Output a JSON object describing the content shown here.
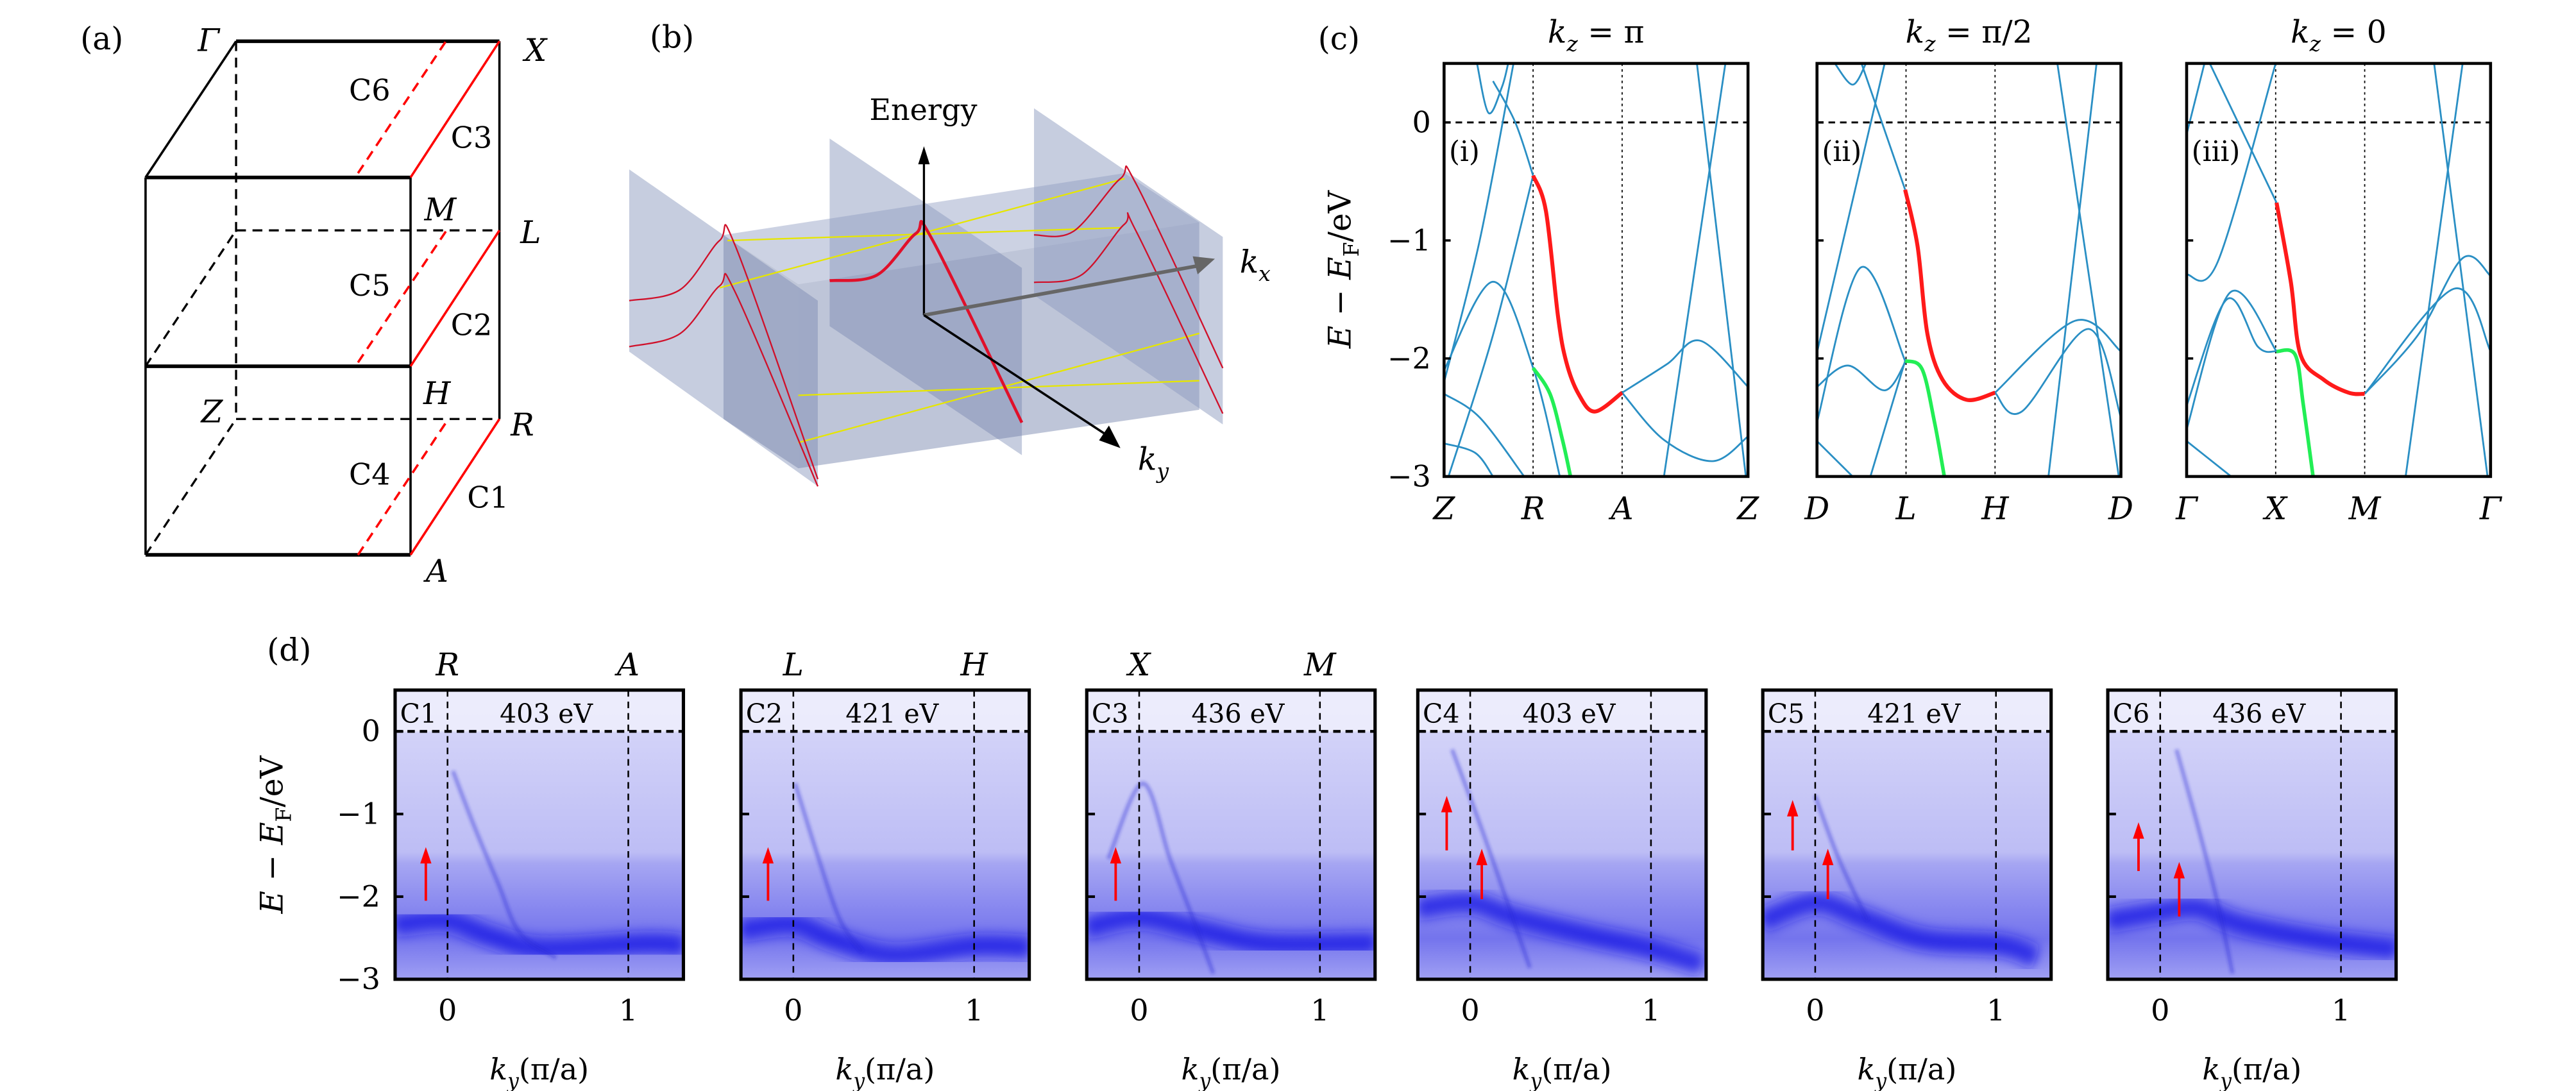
{
  "panel_a": {
    "tag": "(a)",
    "points": {
      "Gamma": "Γ",
      "X": "X",
      "M": "M",
      "L": "L",
      "H": "H",
      "Z": "Z",
      "R": "R",
      "A": "A"
    },
    "cuts": {
      "C1": "C1",
      "C2": "C2",
      "C3": "C3",
      "C4": "C4",
      "C5": "C5",
      "C6": "C6"
    },
    "cut_color": "#ff0000"
  },
  "panel_b": {
    "tag": "(b)",
    "energy_axis": "Energy",
    "kx_axis": {
      "main": "k",
      "sub": "x"
    },
    "ky_axis": {
      "main": "k",
      "sub": "y"
    },
    "plane_color": "#8e9cc0",
    "band_color": "#d0102a",
    "contour_color": "#e6e600"
  },
  "panel_c": {
    "tag": "(c)",
    "ylabel": {
      "main": "E − E",
      "sub": "F",
      "tail": "/eV"
    }
  },
  "panel_d": {
    "tag": "(d)",
    "ylabel": {
      "main": "E − E",
      "sub": "F",
      "tail": "/eV"
    }
  },
  "chart_data": [
    {
      "type": "line",
      "panel": "c",
      "title": {
        "main": "k",
        "sub": "z",
        "tail": " = π"
      },
      "panel_tag": "(i)",
      "ylabel": "E − E_F/eV",
      "ylim": [
        -3,
        0.5
      ],
      "yticks": [
        0,
        -1,
        -2,
        -3
      ],
      "ytick_labels": [
        "0",
        "−1",
        "−2",
        "−3"
      ],
      "xlim": [
        0,
        3.414
      ],
      "xticks": [
        {
          "value": 0,
          "label": "Z"
        },
        {
          "value": 1,
          "label": "R"
        },
        {
          "value": 2,
          "label": "A"
        },
        {
          "value": 3.414,
          "label": "Z"
        }
      ],
      "fermi_level": 0,
      "colors": {
        "bands": "#2a8fc4",
        "highlight_upper": "#ff1a1a",
        "highlight_lower": "#22ee55"
      },
      "highlight_upper": [
        [
          1.0,
          -0.45
        ],
        [
          1.144,
          -0.75
        ],
        [
          1.281,
          -1.65
        ],
        [
          1.373,
          -2.03
        ],
        [
          1.51,
          -2.3
        ],
        [
          1.693,
          -2.45
        ],
        [
          2.0,
          -2.29
        ]
      ],
      "highlight_lower": [
        [
          1.0,
          -2.08
        ],
        [
          1.19,
          -2.3
        ],
        [
          1.33,
          -2.69
        ],
        [
          1.42,
          -3.0
        ]
      ],
      "bands": [
        [
          [
            0.37,
            0.5
          ],
          [
            0.5,
            0.08
          ],
          [
            0.65,
            0.3
          ],
          [
            0.72,
            0.5
          ]
        ],
        [
          [
            0.78,
            0.5
          ],
          [
            0.4,
            -1.0
          ],
          [
            0.0,
            -2.2
          ]
        ],
        [
          [
            0.55,
            0.35
          ],
          [
            0.8,
            0.0
          ],
          [
            1.0,
            -0.45
          ]
        ],
        [
          [
            0,
            -2.1
          ],
          [
            0.55,
            -1.35
          ],
          [
            1.0,
            -2.08
          ],
          [
            1.3,
            -3.0
          ]
        ],
        [
          [
            0.05,
            -3.0
          ],
          [
            0.55,
            -1.8
          ],
          [
            1.0,
            -0.45
          ]
        ],
        [
          [
            0,
            -2.72
          ],
          [
            0.35,
            -2.8
          ],
          [
            0.55,
            -3.0
          ]
        ],
        [
          [
            0,
            -2.3
          ],
          [
            0.4,
            -2.5
          ],
          [
            0.9,
            -3.0
          ]
        ],
        [
          [
            2.0,
            -2.29
          ],
          [
            2.5,
            -2.05
          ],
          [
            2.88,
            -1.85
          ],
          [
            3.414,
            -2.24
          ]
        ],
        [
          [
            2.0,
            -2.29
          ],
          [
            2.47,
            -2.69
          ],
          [
            3.02,
            -2.87
          ],
          [
            3.414,
            -2.66
          ]
        ],
        [
          [
            3.16,
            0.5
          ],
          [
            2.47,
            -3.0
          ]
        ],
        [
          [
            2.84,
            0.5
          ],
          [
            3.39,
            -3.0
          ]
        ]
      ]
    },
    {
      "type": "line",
      "panel": "c",
      "title": {
        "main": "k",
        "sub": "z",
        "tail": " = π/2"
      },
      "panel_tag": "(ii)",
      "ylim": [
        -3,
        0.5
      ],
      "yticks": [
        0,
        -1,
        -2,
        -3
      ],
      "xlim": [
        0,
        3.414
      ],
      "xticks": [
        {
          "value": 0,
          "label": "D"
        },
        {
          "value": 1,
          "label": "L"
        },
        {
          "value": 2,
          "label": "H"
        },
        {
          "value": 3.414,
          "label": "D"
        }
      ],
      "fermi_level": 0,
      "colors": {
        "bands": "#2a8fc4",
        "highlight_upper": "#ff1a1a",
        "highlight_lower": "#22ee55"
      },
      "highlight_upper": [
        [
          0.99,
          -0.57
        ],
        [
          1.13,
          -1.05
        ],
        [
          1.24,
          -1.79
        ],
        [
          1.41,
          -2.18
        ],
        [
          1.68,
          -2.35
        ],
        [
          2.0,
          -2.29
        ]
      ],
      "highlight_lower": [
        [
          0.99,
          -2.02
        ],
        [
          1.18,
          -2.09
        ],
        [
          1.32,
          -2.54
        ],
        [
          1.43,
          -3.0
        ]
      ],
      "bands": [
        [
          [
            0,
            -1.95
          ],
          [
            0.76,
            0.5
          ]
        ],
        [
          [
            0.2,
            0.5
          ],
          [
            0.4,
            0.32
          ],
          [
            0.55,
            0.5
          ]
        ],
        [
          [
            0.5,
            0.5
          ],
          [
            0.99,
            -0.57
          ]
        ],
        [
          [
            0,
            -2.54
          ],
          [
            0.49,
            -1.23
          ],
          [
            0.99,
            -2.02
          ]
        ],
        [
          [
            0,
            -2.24
          ],
          [
            0.35,
            -2.06
          ],
          [
            0.76,
            -2.27
          ],
          [
            1.0,
            -2.02
          ]
        ],
        [
          [
            0,
            -2.7
          ],
          [
            0.4,
            -3.0
          ]
        ],
        [
          [
            0.6,
            -3.0
          ],
          [
            0.99,
            -2.02
          ]
        ],
        [
          [
            2.0,
            -2.29
          ],
          [
            2.9,
            -1.68
          ],
          [
            3.414,
            -1.94
          ]
        ],
        [
          [
            2.0,
            -2.29
          ],
          [
            2.3,
            -2.45
          ],
          [
            3.05,
            -1.75
          ],
          [
            3.414,
            -2.5
          ]
        ],
        [
          [
            3.14,
            0.5
          ],
          [
            2.6,
            -3.0
          ]
        ],
        [
          [
            2.7,
            0.5
          ],
          [
            3.39,
            -3.0
          ]
        ]
      ]
    },
    {
      "type": "line",
      "panel": "c",
      "title": {
        "main": "k",
        "sub": "z",
        "tail": " = 0"
      },
      "panel_tag": "(iii)",
      "ylim": [
        -3,
        0.5
      ],
      "yticks": [
        0,
        -1,
        -2,
        -3
      ],
      "xlim": [
        0,
        3.414
      ],
      "xticks": [
        {
          "value": 0,
          "label": "Γ"
        },
        {
          "value": 1,
          "label": "X"
        },
        {
          "value": 2,
          "label": "M"
        },
        {
          "value": 3.414,
          "label": "Γ"
        }
      ],
      "fermi_level": 0,
      "colors": {
        "bands": "#2a8fc4",
        "highlight_upper": "#ff1a1a",
        "highlight_lower": "#22ee55"
      },
      "highlight_upper": [
        [
          1.01,
          -0.68
        ],
        [
          1.17,
          -1.35
        ],
        [
          1.28,
          -1.97
        ],
        [
          1.54,
          -2.18
        ],
        [
          1.82,
          -2.29
        ],
        [
          2.0,
          -2.3
        ]
      ],
      "highlight_lower": [
        [
          1.01,
          -1.94
        ],
        [
          1.22,
          -1.97
        ],
        [
          1.31,
          -2.39
        ],
        [
          1.42,
          -3.0
        ]
      ],
      "bands": [
        [
          [
            0,
            -1.29
          ],
          [
            0.35,
            -1.18
          ],
          [
            1.0,
            0.5
          ]
        ],
        [
          [
            0.26,
            0.5
          ],
          [
            1.01,
            -0.68
          ]
        ],
        [
          [
            0,
            -2.6
          ],
          [
            0.49,
            -1.44
          ],
          [
            1.01,
            -1.94
          ]
        ],
        [
          [
            0,
            -2.4
          ],
          [
            0.45,
            -1.5
          ],
          [
            0.8,
            -1.9
          ],
          [
            1.0,
            -1.94
          ]
        ],
        [
          [
            0,
            -2.7
          ],
          [
            0.5,
            -3.0
          ]
        ],
        [
          [
            0,
            -0.1
          ],
          [
            0.2,
            0.5
          ]
        ],
        [
          [
            3.1,
            0.5
          ],
          [
            2.46,
            -3.0
          ]
        ],
        [
          [
            2.78,
            0.5
          ],
          [
            3.38,
            -3.0
          ]
        ],
        [
          [
            2.0,
            -2.3
          ],
          [
            3.0,
            -1.41
          ],
          [
            3.414,
            -1.94
          ]
        ],
        [
          [
            2.0,
            -2.3
          ],
          [
            2.6,
            -1.8
          ],
          [
            3.1,
            -1.15
          ],
          [
            3.414,
            -1.3
          ]
        ]
      ]
    },
    {
      "type": "heatmap",
      "panel": "d",
      "cut": "C1",
      "photon_energy": "403 eV",
      "top_labels": [
        {
          "value": 0,
          "label": "R"
        },
        {
          "value": 1,
          "label": "A"
        }
      ],
      "xlim": [
        -0.29,
        1.305
      ],
      "ylim": [
        -3,
        0.5
      ],
      "xticks": [
        0,
        1
      ],
      "xtick_labels": [
        "0",
        "1"
      ],
      "yticks": [
        0,
        -1,
        -2,
        -3
      ],
      "ytick_labels": [
        "0",
        "−1",
        "−2",
        "−3"
      ],
      "xlabel": {
        "main": "k",
        "sub": "y",
        "tail": "(π/a)"
      },
      "colormap": [
        "#ececfb",
        "#0a0ae6"
      ],
      "arrow_color": "#ff0000",
      "arrows": [
        {
          "x": -0.12,
          "from": -2.05,
          "to": -1.4
        }
      ],
      "intense_band": [
        [
          -0.29,
          -2.35
        ],
        [
          -0.26,
          -2.33
        ],
        [
          0,
          -2.29
        ],
        [
          0.24,
          -2.48
        ],
        [
          0.52,
          -2.63
        ],
        [
          1.1,
          -2.57
        ],
        [
          1.305,
          -2.6
        ]
      ],
      "faint_bands": [
        [
          [
            0.03,
            -0.48
          ],
          [
            0.15,
            -1.16
          ],
          [
            0.28,
            -1.84
          ],
          [
            0.4,
            -2.44
          ],
          [
            0.6,
            -2.74
          ]
        ]
      ]
    },
    {
      "type": "heatmap",
      "panel": "d",
      "cut": "C2",
      "photon_energy": "421 eV",
      "top_labels": [
        {
          "value": 0,
          "label": "L"
        },
        {
          "value": 1,
          "label": "H"
        }
      ],
      "xlim": [
        -0.29,
        1.305
      ],
      "ylim": [
        -3,
        0.5
      ],
      "xticks": [
        0,
        1
      ],
      "xtick_labels": [
        "0",
        "1"
      ],
      "yticks": [
        0,
        -1,
        -2,
        -3
      ],
      "xlabel": {
        "main": "k",
        "sub": "y",
        "tail": "(π/a)"
      },
      "arrows": [
        {
          "x": -0.14,
          "from": -2.05,
          "to": -1.4
        }
      ],
      "intense_band": [
        [
          -0.29,
          -2.4
        ],
        [
          0,
          -2.33
        ],
        [
          0.22,
          -2.52
        ],
        [
          0.55,
          -2.71
        ],
        [
          1.0,
          -2.6
        ],
        [
          1.305,
          -2.62
        ]
      ],
      "faint_bands": [
        [
          [
            0.01,
            -0.63
          ],
          [
            0.14,
            -1.54
          ],
          [
            0.26,
            -2.29
          ],
          [
            0.38,
            -2.67
          ]
        ]
      ]
    },
    {
      "type": "heatmap",
      "panel": "d",
      "cut": "C3",
      "photon_energy": "436 eV",
      "top_labels": [
        {
          "value": 0,
          "label": "X"
        },
        {
          "value": 1,
          "label": "M"
        }
      ],
      "xlim": [
        -0.29,
        1.305
      ],
      "ylim": [
        -3,
        0.5
      ],
      "xticks": [
        0,
        1
      ],
      "xtick_labels": [
        "0",
        "1"
      ],
      "yticks": [
        0,
        -1,
        -2,
        -3
      ],
      "xlabel": {
        "main": "k",
        "sub": "y",
        "tail": "(π/a)"
      },
      "arrows": [
        {
          "x": -0.13,
          "from": -2.05,
          "to": -1.4
        }
      ],
      "intense_band": [
        [
          -0.29,
          -2.37
        ],
        [
          0,
          -2.25
        ],
        [
          0.33,
          -2.4
        ],
        [
          0.7,
          -2.57
        ],
        [
          1.24,
          -2.57
        ],
        [
          1.305,
          -2.58
        ]
      ],
      "faint_bands": [
        [
          [
            -0.17,
            -1.54
          ],
          [
            0.02,
            -0.63
          ],
          [
            0.17,
            -1.54
          ],
          [
            0.29,
            -2.22
          ],
          [
            0.41,
            -2.93
          ]
        ]
      ]
    },
    {
      "type": "heatmap",
      "panel": "d",
      "cut": "C4",
      "photon_energy": "403 eV",
      "xlim": [
        -0.29,
        1.305
      ],
      "ylim": [
        -3,
        0.5
      ],
      "xticks": [
        0,
        1
      ],
      "xtick_labels": [
        "0",
        "1"
      ],
      "yticks": [
        0,
        -1,
        -2,
        -3
      ],
      "xlabel": {
        "main": "k",
        "sub": "y",
        "tail": "(π/a)"
      },
      "arrows": [
        {
          "x": -0.13,
          "from": -1.44,
          "to": -0.78
        },
        {
          "x": 0.064,
          "from": -2.03,
          "to": -1.42
        }
      ],
      "intense_band": [
        [
          -0.29,
          -2.14
        ],
        [
          0,
          -2.07
        ],
        [
          0.25,
          -2.25
        ],
        [
          0.68,
          -2.48
        ],
        [
          0.99,
          -2.63
        ],
        [
          1.28,
          -2.82
        ]
      ],
      "faint_bands": [
        [
          [
            -0.1,
            -0.22
          ],
          [
            0.06,
            -1.16
          ],
          [
            0.21,
            -2.1
          ],
          [
            0.33,
            -2.86
          ]
        ]
      ]
    },
    {
      "type": "heatmap",
      "panel": "d",
      "cut": "C5",
      "photon_energy": "421 eV",
      "xlim": [
        -0.29,
        1.305
      ],
      "ylim": [
        -3,
        0.5
      ],
      "xticks": [
        0,
        1
      ],
      "xtick_labels": [
        "0",
        "1"
      ],
      "yticks": [
        0,
        -1,
        -2,
        -3
      ],
      "xlabel": {
        "main": "k",
        "sub": "y",
        "tail": "(π/a)"
      },
      "arrows": [
        {
          "x": -0.125,
          "from": -1.44,
          "to": -0.83
        },
        {
          "x": 0.07,
          "from": -2.03,
          "to": -1.42
        }
      ],
      "intense_band": [
        [
          -0.29,
          -2.29
        ],
        [
          0,
          -2.07
        ],
        [
          0.25,
          -2.25
        ],
        [
          0.6,
          -2.52
        ],
        [
          1.03,
          -2.59
        ],
        [
          1.22,
          -2.74
        ]
      ],
      "faint_bands": [
        [
          [
            0,
            -0.78
          ],
          [
            0.13,
            -1.54
          ],
          [
            0.29,
            -2.29
          ]
        ]
      ]
    },
    {
      "type": "heatmap",
      "panel": "d",
      "cut": "C6",
      "photon_energy": "436 eV",
      "xlim": [
        -0.29,
        1.305
      ],
      "ylim": [
        -3,
        0.5
      ],
      "xticks": [
        0,
        1
      ],
      "xtick_labels": [
        "0",
        "1"
      ],
      "yticks": [
        0,
        -1,
        -2,
        -3
      ],
      "xlabel": {
        "main": "k",
        "sub": "y",
        "tail": "(π/a)"
      },
      "arrows": [
        {
          "x": -0.12,
          "from": -1.69,
          "to": -1.1
        },
        {
          "x": 0.105,
          "from": -2.24,
          "to": -1.58
        }
      ],
      "intense_band": [
        [
          -0.29,
          -2.29
        ],
        [
          0,
          -2.18
        ],
        [
          0.21,
          -2.14
        ],
        [
          0.44,
          -2.33
        ],
        [
          0.87,
          -2.52
        ],
        [
          1.26,
          -2.63
        ],
        [
          1.305,
          -2.66
        ]
      ],
      "faint_bands": [
        [
          [
            0.09,
            -0.22
          ],
          [
            0.21,
            -1.16
          ],
          [
            0.32,
            -2.1
          ],
          [
            0.4,
            -2.93
          ]
        ]
      ]
    }
  ]
}
